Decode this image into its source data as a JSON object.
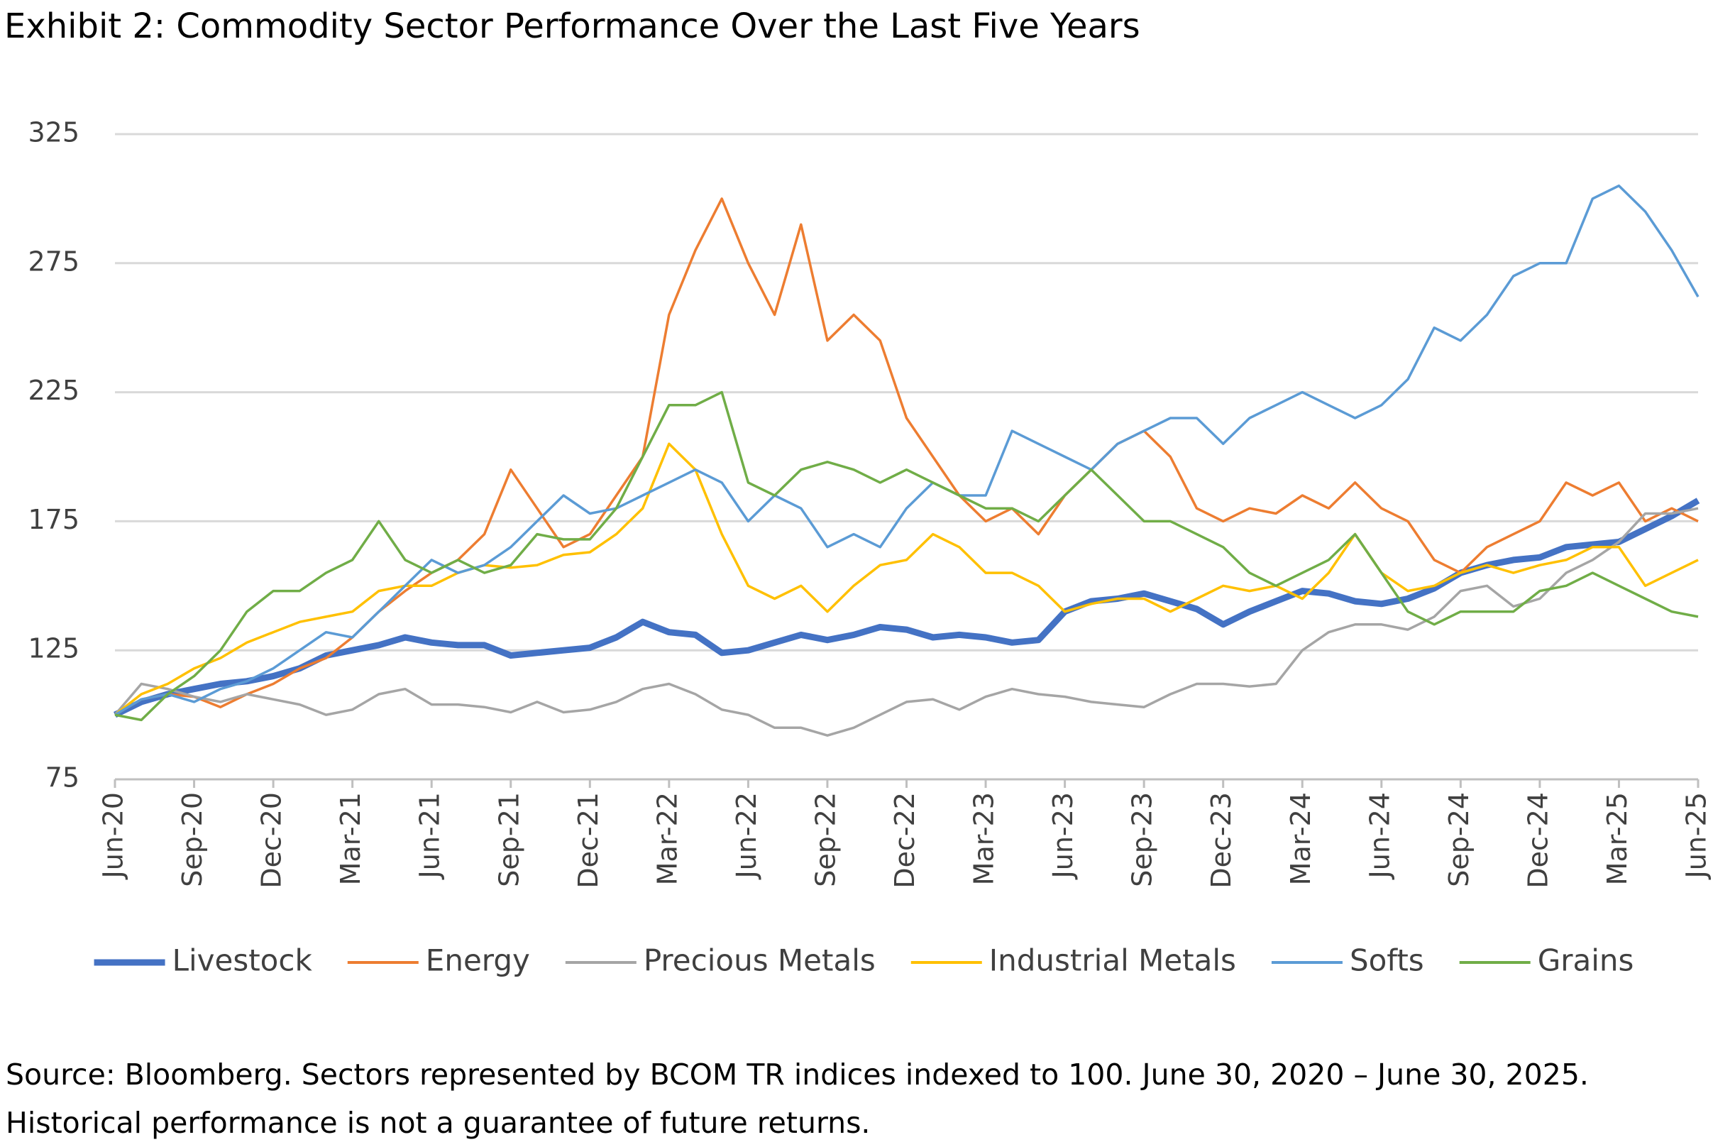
{
  "chart_data": {
    "type": "line",
    "title": "Exhibit 2: Commodity Sector Performance Over the Last Five Years",
    "note": "Source: Bloomberg. Sectors represented by BCOM TR indices indexed to 100.  June 30, 2020 – June 30, 2025. Historical performance is not a guarantee of future returns.",
    "categories": [
      "Jun-20",
      null,
      null,
      "Sep-20",
      null,
      null,
      "Dec-20",
      null,
      null,
      "Mar-21",
      null,
      null,
      "Jun-21",
      null,
      null,
      "Sep-21",
      null,
      null,
      "Dec-21",
      null,
      null,
      "Mar-22",
      null,
      null,
      "Jun-22",
      null,
      null,
      "Sep-22",
      null,
      null,
      "Dec-22",
      null,
      null,
      "Mar-23",
      null,
      null,
      "Jun-23",
      null,
      null,
      "Sep-23",
      null,
      null,
      "Dec-23",
      null,
      null,
      "Mar-24",
      null,
      null,
      "Jun-24",
      null,
      null,
      "Sep-24",
      null,
      null,
      "Dec-24",
      null,
      null,
      "Mar-25",
      null,
      null,
      "Jun-25"
    ],
    "ylim": [
      75,
      325
    ],
    "yticks": [
      75,
      125,
      175,
      225,
      275,
      325
    ],
    "grid": true,
    "legend": "bottom",
    "series": [
      {
        "name": "Livestock",
        "color": "#4472c4",
        "values": [
          100,
          105,
          108,
          110,
          112,
          113,
          115,
          118,
          123,
          125,
          127,
          130,
          128,
          127,
          127,
          123,
          124,
          125,
          126,
          130,
          136,
          132,
          131,
          124,
          125,
          128,
          131,
          129,
          131,
          134,
          133,
          130,
          131,
          130,
          128,
          129,
          140,
          144,
          145,
          147,
          144,
          141,
          135,
          140,
          144,
          148,
          147,
          144,
          143,
          145,
          149,
          155,
          158,
          160,
          161,
          165,
          166,
          167,
          172,
          177,
          183
        ]
      },
      {
        "name": "Energy",
        "color": "#ed7d31",
        "values": [
          100,
          106,
          108,
          107,
          103,
          108,
          112,
          118,
          122,
          130,
          140,
          148,
          155,
          160,
          170,
          195,
          180,
          165,
          170,
          185,
          200,
          255,
          280,
          300,
          275,
          255,
          290,
          245,
          255,
          245,
          215,
          200,
          185,
          175,
          180,
          170,
          185,
          195,
          205,
          210,
          200,
          180,
          175,
          180,
          178,
          185,
          180,
          190,
          180,
          175,
          160,
          155,
          165,
          170,
          175,
          190,
          185,
          190,
          175,
          180,
          175
        ]
      },
      {
        "name": "Precious Metals",
        "color": "#a5a5a5",
        "values": [
          100,
          112,
          110,
          107,
          105,
          108,
          106,
          104,
          100,
          102,
          108,
          110,
          104,
          104,
          103,
          101,
          105,
          101,
          102,
          105,
          110,
          112,
          108,
          102,
          100,
          95,
          95,
          92,
          95,
          100,
          105,
          106,
          102,
          107,
          110,
          108,
          107,
          105,
          104,
          103,
          108,
          112,
          112,
          111,
          112,
          125,
          132,
          135,
          135,
          133,
          138,
          148,
          150,
          142,
          145,
          155,
          160,
          167,
          178,
          178,
          180
        ]
      },
      {
        "name": "Industrial Metals",
        "color": "#ffc000",
        "values": [
          100,
          108,
          112,
          118,
          122,
          128,
          132,
          136,
          138,
          140,
          148,
          150,
          150,
          155,
          158,
          157,
          158,
          162,
          163,
          170,
          180,
          205,
          195,
          170,
          150,
          145,
          150,
          140,
          150,
          158,
          160,
          170,
          165,
          155,
          155,
          150,
          140,
          143,
          145,
          145,
          140,
          145,
          150,
          148,
          150,
          145,
          155,
          170,
          155,
          148,
          150,
          155,
          158,
          155,
          158,
          160,
          165,
          165,
          150,
          155,
          160
        ]
      },
      {
        "name": "Softs",
        "color": "#5b9bd5",
        "values": [
          100,
          106,
          108,
          105,
          110,
          113,
          118,
          125,
          132,
          130,
          140,
          150,
          160,
          155,
          158,
          165,
          175,
          185,
          178,
          180,
          185,
          190,
          195,
          190,
          175,
          185,
          180,
          165,
          170,
          165,
          180,
          190,
          185,
          185,
          210,
          205,
          200,
          195,
          205,
          210,
          215,
          215,
          205,
          215,
          220,
          225,
          220,
          215,
          220,
          230,
          250,
          245,
          255,
          270,
          275,
          275,
          300,
          305,
          295,
          280,
          262
        ]
      },
      {
        "name": "Grains",
        "color": "#70ad47",
        "values": [
          100,
          98,
          108,
          115,
          125,
          140,
          148,
          148,
          155,
          160,
          175,
          160,
          155,
          160,
          155,
          158,
          170,
          168,
          168,
          180,
          200,
          220,
          220,
          225,
          190,
          185,
          195,
          198,
          195,
          190,
          195,
          190,
          185,
          180,
          180,
          175,
          185,
          195,
          185,
          175,
          175,
          170,
          165,
          155,
          150,
          155,
          160,
          170,
          155,
          140,
          135,
          140,
          140,
          140,
          148,
          150,
          155,
          150,
          145,
          140,
          138
        ]
      }
    ]
  }
}
